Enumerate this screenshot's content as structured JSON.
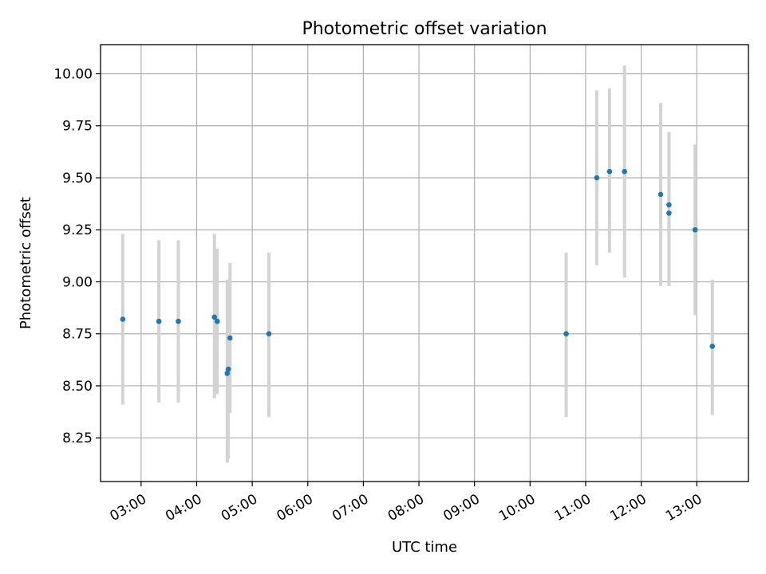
{
  "chart_data": {
    "type": "scatter",
    "title": "Photometric offset variation",
    "xlabel": "UTC time",
    "ylabel": "Photometric offset",
    "x_tick_labels": [
      "03:00",
      "04:00",
      "05:00",
      "06:00",
      "07:00",
      "08:00",
      "09:00",
      "10:00",
      "11:00",
      "12:00",
      "13:00"
    ],
    "x_tick_hours": [
      3,
      4,
      5,
      6,
      7,
      8,
      9,
      10,
      11,
      12,
      13
    ],
    "y_ticks": [
      "8.25",
      "8.50",
      "8.75",
      "9.00",
      "9.25",
      "9.50",
      "9.75",
      "10.00"
    ],
    "xlim_hours": [
      2.27,
      13.93
    ],
    "ylim": [
      8.04,
      10.14
    ],
    "grid": true,
    "colors": {
      "marker": "#1f77b4",
      "errorbar": "#d3d3d3",
      "grid": "#b0b0b0"
    },
    "points": [
      {
        "t_hours": 2.67,
        "y": 8.82,
        "ylow": 8.41,
        "yhigh": 9.23
      },
      {
        "t_hours": 3.32,
        "y": 8.81,
        "ylow": 8.42,
        "yhigh": 9.2
      },
      {
        "t_hours": 3.67,
        "y": 8.81,
        "ylow": 8.42,
        "yhigh": 9.2
      },
      {
        "t_hours": 4.32,
        "y": 8.83,
        "ylow": 8.44,
        "yhigh": 9.23
      },
      {
        "t_hours": 4.37,
        "y": 8.81,
        "ylow": 8.46,
        "yhigh": 9.16
      },
      {
        "t_hours": 4.55,
        "y": 8.56,
        "ylow": 8.13,
        "yhigh": 9.01
      },
      {
        "t_hours": 4.57,
        "y": 8.58,
        "ylow": 8.15,
        "yhigh": 9.01
      },
      {
        "t_hours": 4.6,
        "y": 8.73,
        "ylow": 8.37,
        "yhigh": 9.09
      },
      {
        "t_hours": 5.3,
        "y": 8.75,
        "ylow": 8.35,
        "yhigh": 9.14
      },
      {
        "t_hours": 10.65,
        "y": 8.75,
        "ylow": 8.35,
        "yhigh": 9.14
      },
      {
        "t_hours": 11.2,
        "y": 9.5,
        "ylow": 9.08,
        "yhigh": 9.92
      },
      {
        "t_hours": 11.43,
        "y": 9.53,
        "ylow": 9.14,
        "yhigh": 9.93
      },
      {
        "t_hours": 11.7,
        "y": 9.53,
        "ylow": 9.02,
        "yhigh": 10.04
      },
      {
        "t_hours": 12.35,
        "y": 9.42,
        "ylow": 8.98,
        "yhigh": 9.86
      },
      {
        "t_hours": 12.5,
        "y": 9.37,
        "ylow": 8.98,
        "yhigh": 9.72
      },
      {
        "t_hours": 12.5,
        "y": 9.33,
        "ylow": 8.98,
        "yhigh": 9.72
      },
      {
        "t_hours": 12.97,
        "y": 9.25,
        "ylow": 8.84,
        "yhigh": 9.66
      },
      {
        "t_hours": 13.28,
        "y": 8.69,
        "ylow": 8.36,
        "yhigh": 9.01
      }
    ]
  }
}
